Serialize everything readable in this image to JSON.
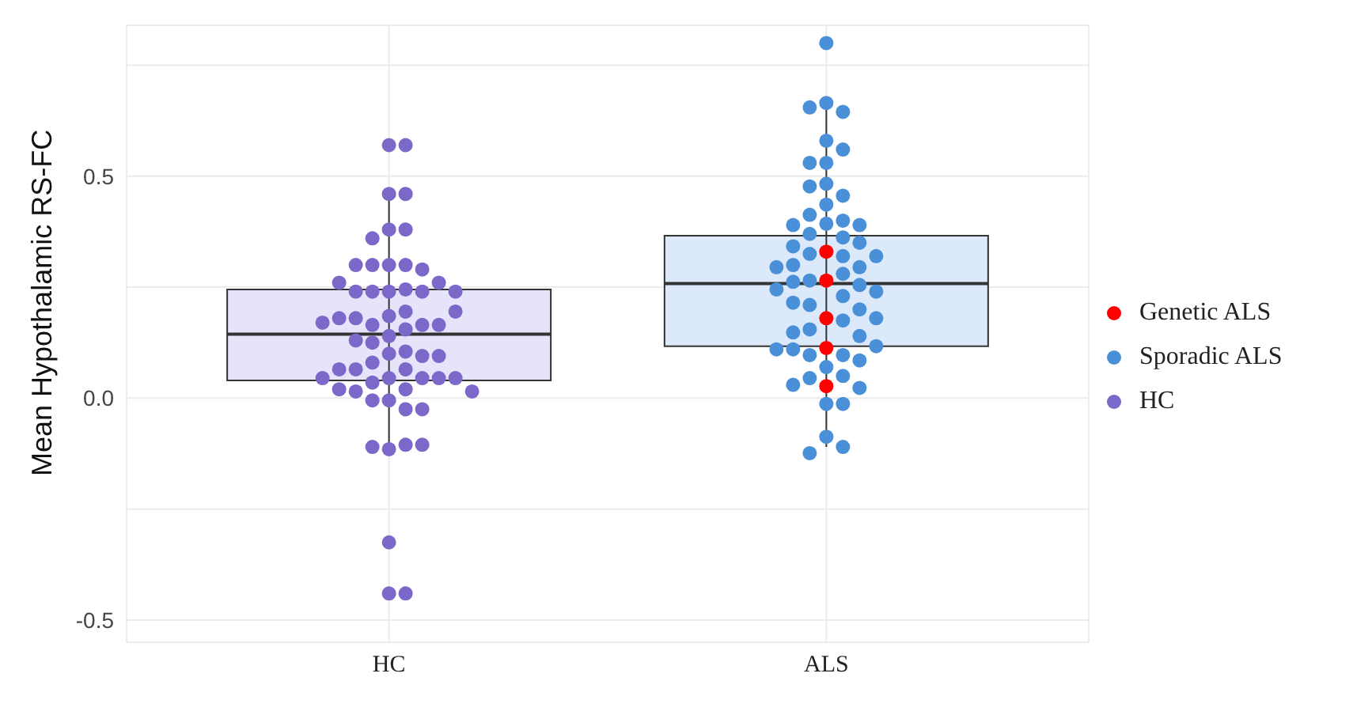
{
  "chart_data": {
    "type": "box",
    "ylabel": "Mean Hypothalamic RS-FC",
    "categories": [
      "HC",
      "ALS"
    ],
    "boxes": [
      {
        "low": -0.11,
        "q1": 0.04,
        "median": 0.144,
        "q3": 0.245,
        "high": 0.464
      },
      {
        "low": -0.11,
        "q1": 0.117,
        "median": 0.258,
        "q3": 0.366,
        "high": 0.664
      }
    ],
    "colors": [
      "#e6e4fa",
      "#dbe9fb"
    ],
    "series": [
      {
        "name": "Genetic ALS",
        "type": "scatter",
        "color": "#ff0000",
        "x": [
          "ALS",
          "ALS",
          "ALS",
          "ALS",
          "ALS"
        ],
        "values": [
          0.33,
          0.265,
          0.18,
          0.113,
          0.027
        ]
      },
      {
        "name": "Sporadic ALS",
        "type": "scatter",
        "color": "#4a90d9",
        "x": [
          "ALS",
          "ALS",
          "ALS",
          "ALS",
          "ALS",
          "ALS",
          "ALS",
          "ALS",
          "ALS",
          "ALS",
          "ALS",
          "ALS",
          "ALS",
          "ALS",
          "ALS",
          "ALS",
          "ALS",
          "ALS",
          "ALS",
          "ALS",
          "ALS",
          "ALS",
          "ALS",
          "ALS",
          "ALS",
          "ALS",
          "ALS",
          "ALS",
          "ALS",
          "ALS",
          "ALS",
          "ALS",
          "ALS",
          "ALS",
          "ALS",
          "ALS",
          "ALS",
          "ALS",
          "ALS",
          "ALS",
          "ALS",
          "ALS",
          "ALS",
          "ALS",
          "ALS",
          "ALS",
          "ALS",
          "ALS",
          "ALS",
          "ALS",
          "ALS",
          "ALS",
          "ALS",
          "ALS",
          "ALS",
          "ALS",
          "ALS",
          "ALS"
        ],
        "values": [
          0.8,
          0.665,
          0.645,
          0.655,
          0.58,
          0.56,
          0.53,
          0.53,
          0.483,
          0.456,
          0.477,
          0.436,
          0.4,
          0.393,
          0.413,
          0.39,
          0.39,
          0.37,
          0.362,
          0.35,
          0.325,
          0.32,
          0.342,
          0.295,
          0.3,
          0.28,
          0.265,
          0.262,
          0.32,
          0.295,
          0.255,
          0.23,
          0.24,
          0.245,
          0.21,
          0.2,
          0.215,
          0.175,
          0.155,
          0.18,
          0.14,
          0.148,
          0.097,
          0.097,
          0.085,
          0.07,
          0.117,
          0.11,
          0.11,
          0.05,
          0.045,
          0.023,
          0.03,
          -0.013,
          -0.013,
          -0.087,
          -0.11,
          -0.124
        ]
      },
      {
        "name": "HC",
        "type": "scatter",
        "color": "#7b68c8",
        "x": [
          "HC",
          "HC",
          "HC",
          "HC",
          "HC",
          "HC",
          "HC",
          "HC",
          "HC",
          "HC",
          "HC",
          "HC",
          "HC",
          "HC",
          "HC",
          "HC",
          "HC",
          "HC",
          "HC",
          "HC",
          "HC",
          "HC",
          "HC",
          "HC",
          "HC",
          "HC",
          "HC",
          "HC",
          "HC",
          "HC",
          "HC",
          "HC",
          "HC",
          "HC",
          "HC",
          "HC",
          "HC",
          "HC",
          "HC",
          "HC",
          "HC",
          "HC",
          "HC",
          "HC",
          "HC",
          "HC",
          "HC",
          "HC",
          "HC",
          "HC",
          "HC",
          "HC",
          "HC",
          "HC",
          "HC",
          "HC",
          "HC",
          "HC",
          "HC",
          "HC",
          "HC",
          "HC"
        ],
        "values": [
          0.57,
          0.57,
          0.46,
          0.46,
          0.38,
          0.38,
          0.36,
          0.3,
          0.3,
          0.3,
          0.29,
          0.3,
          0.24,
          0.245,
          0.24,
          0.24,
          0.24,
          0.26,
          0.26,
          0.24,
          0.185,
          0.195,
          0.165,
          0.165,
          0.18,
          0.14,
          0.165,
          0.18,
          0.155,
          0.195,
          0.17,
          0.125,
          0.13,
          0.105,
          0.1,
          0.095,
          0.095,
          0.065,
          0.08,
          0.065,
          0.065,
          0.045,
          0.045,
          0.035,
          0.045,
          0.045,
          0.045,
          0.02,
          0.015,
          0.02,
          0.015,
          -0.005,
          -0.005,
          -0.025,
          -0.025,
          -0.115,
          -0.105,
          -0.11,
          -0.105,
          -0.325,
          -0.44,
          -0.44
        ]
      }
    ],
    "ylim": [
      -0.55,
      0.84
    ],
    "yticks": [
      -0.5,
      {
        "value": -0.25,
        "label": null
      },
      {
        "value": 0,
        "label": "0.0"
      },
      {
        "value": 0.25,
        "label": null
      },
      0.5,
      {
        "value": 0.75,
        "label": null
      }
    ],
    "grid": true,
    "legend": "right",
    "marker": "circle"
  }
}
